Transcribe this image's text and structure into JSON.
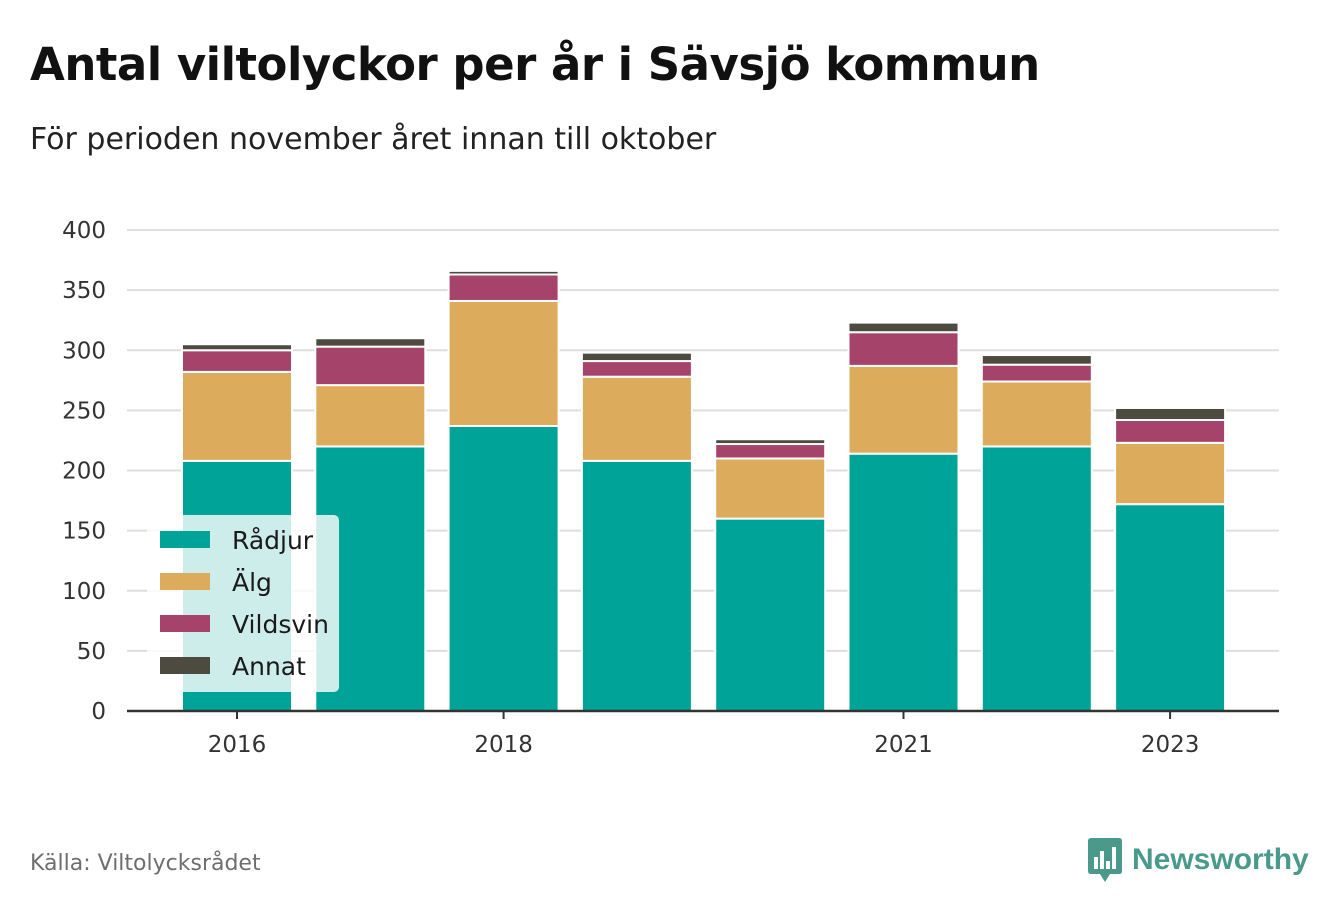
{
  "header": {
    "title": "Antal viltolyckor per år i Sävsjö kommun",
    "subtitle": "För perioden november året innan till oktober"
  },
  "footer": {
    "source": "Källa: Viltolycksrådet",
    "brand": "Newsworthy",
    "brand_color": "#4a9a8c",
    "brand_icon": "bar-chart-speech-bubble-icon"
  },
  "chart_data": {
    "type": "bar",
    "stacked": true,
    "categories": [
      "2016",
      "2017",
      "2018",
      "2019",
      "2020",
      "2021",
      "2022",
      "2023"
    ],
    "x_tick_labels": [
      "2016",
      "2018",
      "2021",
      "2023"
    ],
    "series": [
      {
        "name": "Rådjur",
        "color": "#00a398",
        "values": [
          208,
          220,
          237,
          208,
          160,
          214,
          220,
          172
        ]
      },
      {
        "name": "Älg",
        "color": "#dcac5c",
        "values": [
          74,
          51,
          104,
          70,
          50,
          73,
          54,
          51
        ]
      },
      {
        "name": "Vildsvin",
        "color": "#a5436a",
        "values": [
          18,
          32,
          22,
          13,
          12,
          28,
          14,
          19
        ]
      },
      {
        "name": "Annat",
        "color": "#4d4b3f",
        "values": [
          5,
          7,
          3,
          7,
          4,
          8,
          8,
          10
        ]
      }
    ],
    "ylim": [
      0,
      400
    ],
    "y_ticks": [
      0,
      50,
      100,
      150,
      200,
      250,
      300,
      350,
      400
    ],
    "grid": true,
    "legend_position": "bottom-left"
  }
}
